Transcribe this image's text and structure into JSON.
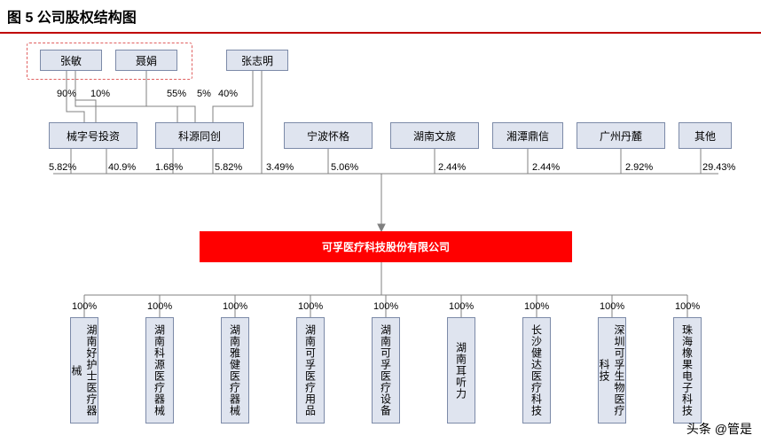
{
  "title": "图 5 公司股权结构图",
  "top": {
    "p1": "张敏",
    "p2": "聂娟",
    "p3": "张志明"
  },
  "t1": {
    "n": "械字号投资",
    "p1": "90%",
    "p2": "10%",
    "mid1": "5.82%",
    "mid2": "40.9%"
  },
  "t2": {
    "n": "科源同创",
    "p1": "55%",
    "p2": "5%",
    "p3": "40%",
    "mid1": "1.68%",
    "mid2": "5.82%"
  },
  "t3": {
    "n": "宁波怀格",
    "mid": "3.49%"
  },
  "t4": {
    "n": "湖南文旅",
    "mid": "5.06%"
  },
  "t5": {
    "n": "湘潭鼎信",
    "mid": "2.44%"
  },
  "t6": {
    "n": "广州丹麓",
    "mid": "2.44%",
    "mid2": "2.92%"
  },
  "t7": {
    "n": "其他",
    "mid": "29.43%"
  },
  "main": "可孚医疗科技股份有限公司",
  "subs": [
    "湖南好护士医疗器械",
    "湖南科源医疗器械",
    "湖南雅健医疗器械",
    "湖南可孚医疗用品",
    "湖南可孚医疗设备",
    "湖南耳听力",
    "长沙健达医疗科技",
    "深圳可孚生物医疗科技",
    "珠海橡果电子科技"
  ],
  "subpct": "100%",
  "footer": "头条 @管是",
  "col": {
    "node_bg": "#dfe4ef",
    "node_bd": "#7c8aa8",
    "main_bg": "#ff0000",
    "dash": "#e06060",
    "rule": "#c00000",
    "line": "#808080"
  }
}
